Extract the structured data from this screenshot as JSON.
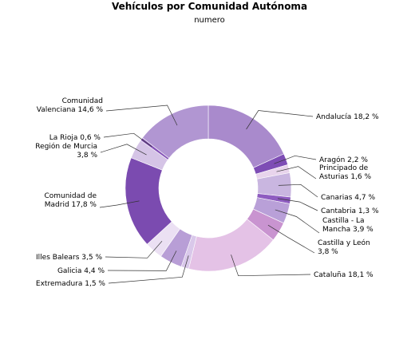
{
  "chart_data": {
    "type": "pie",
    "title": "Vehículos por Comunidad Autónoma",
    "subtitle": "numero",
    "slices": [
      {
        "label": [
          "Andalucía 18,2 %"
        ],
        "value": 18.2,
        "color": "#a98acc"
      },
      {
        "label": [
          "Aragón 2,2 %"
        ],
        "value": 2.2,
        "color": "#7e4db5"
      },
      {
        "label": [
          "Principado de",
          "Asturias 1,6 %"
        ],
        "value": 1.6,
        "color": "#e8d4ec"
      },
      {
        "label": [
          "Canarias 4,7 %"
        ],
        "value": 4.7,
        "color": "#c9b6e0"
      },
      {
        "label": [
          "Cantabria 1,3 %"
        ],
        "value": 1.3,
        "color": "#8e5cc0"
      },
      {
        "label": [
          "Castilla - La",
          "Mancha 3,9 %"
        ],
        "value": 3.9,
        "color": "#b9a0d8"
      },
      {
        "label": [
          "Castilla y León",
          "3,8 %"
        ],
        "value": 3.8,
        "color": "#c994d0"
      },
      {
        "label": [
          "Cataluña 18,1 %"
        ],
        "value": 18.1,
        "color": "#e4c2e6"
      },
      {
        "label": [
          "Extremadura 1,5 %"
        ],
        "value": 1.5,
        "color": "#d9c8ea"
      },
      {
        "label": [
          "Galicia 4,4 %"
        ],
        "value": 4.4,
        "color": "#b89ed6"
      },
      {
        "label": [
          "Illes Balears 3,5 %"
        ],
        "value": 3.5,
        "color": "#ebe0f3"
      },
      {
        "label": [
          "Comunidad de",
          "Madrid 17,8 %"
        ],
        "value": 17.8,
        "color": "#7b4bb0"
      },
      {
        "label": [
          "Región de Murcia",
          "3,8 %"
        ],
        "value": 3.8,
        "color": "#d5c4e6"
      },
      {
        "label": [
          "La Rioja 0,6 %"
        ],
        "value": 0.6,
        "color": "#8654b8"
      },
      {
        "label": [
          "Comunidad",
          "Valenciana 14,6 %"
        ],
        "value": 14.6,
        "color": "#b196d2"
      }
    ]
  }
}
